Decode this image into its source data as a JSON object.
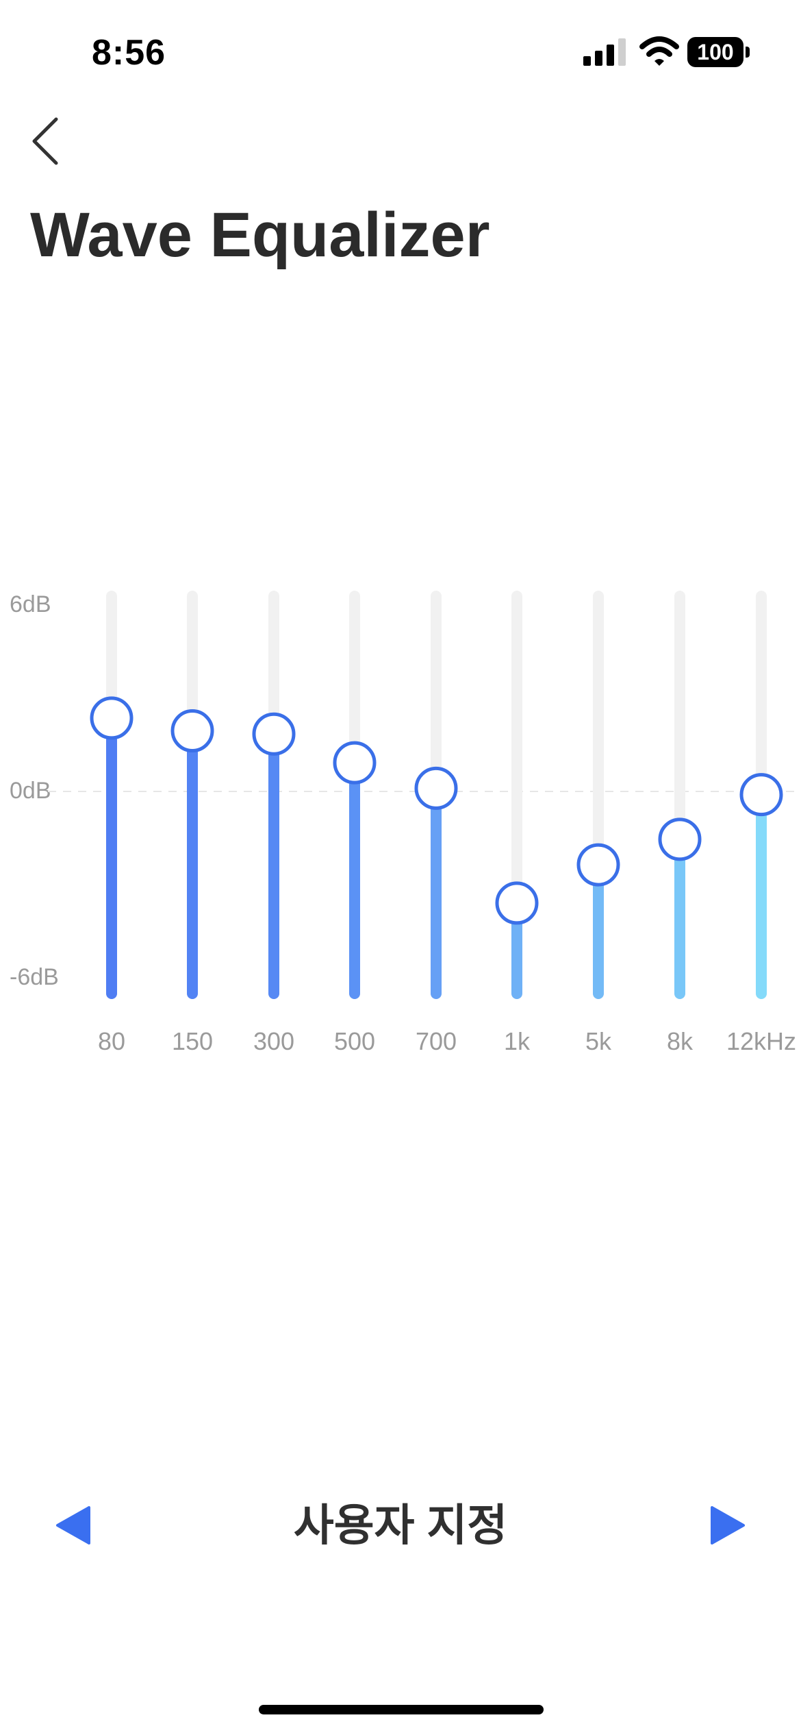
{
  "status_bar": {
    "time": "8:56",
    "battery": "100"
  },
  "header": {
    "title": "Wave Equalizer"
  },
  "equalizer": {
    "db_labels": {
      "max": "6dB",
      "mid": "0dB",
      "min": "-6dB"
    },
    "range_db": [
      -6,
      6
    ],
    "bands": [
      {
        "label": "80",
        "gain_db": 2.3,
        "color": "#4F7DF3"
      },
      {
        "label": "150",
        "gain_db": 1.9,
        "color": "#5283F4"
      },
      {
        "label": "300",
        "gain_db": 1.8,
        "color": "#5689F4"
      },
      {
        "label": "500",
        "gain_db": 0.9,
        "color": "#5B92F5"
      },
      {
        "label": "700",
        "gain_db": 0.1,
        "color": "#66A0F5"
      },
      {
        "label": "1k",
        "gain_db": -3.5,
        "color": "#6FB1F6"
      },
      {
        "label": "5k",
        "gain_db": -2.3,
        "color": "#73BAF6"
      },
      {
        "label": "8k",
        "gain_db": -1.5,
        "color": "#79C7F8"
      },
      {
        "label": "12kHz",
        "gain_db": -0.1,
        "color": "#84DAFA"
      }
    ],
    "knob_border_color": "#3A6FE8",
    "track_color": "#F1F1F1"
  },
  "preset": {
    "label": "사용자 지정",
    "arrow_color": "#3A6FF0"
  }
}
